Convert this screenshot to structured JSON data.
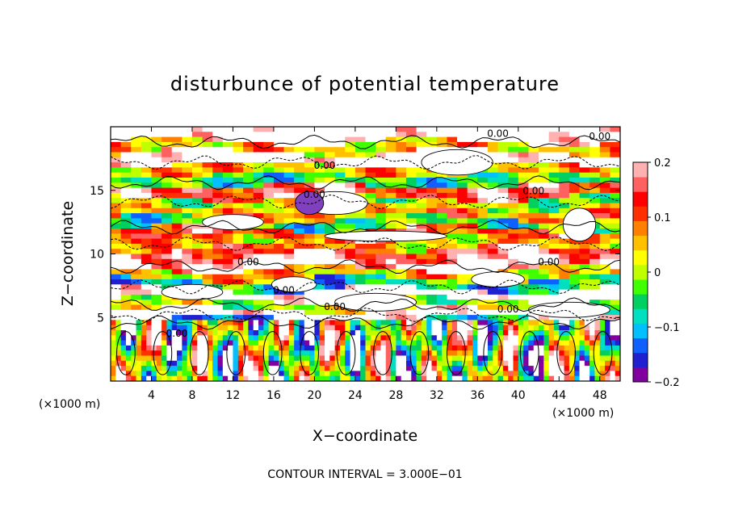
{
  "chart_data": {
    "type": "heatmap",
    "title": "disturbunce of potential temperature",
    "xlabel": "X−coordinate",
    "ylabel": "Z−coordinate",
    "x_unit_left": "(×1000 m)",
    "x_unit_right": "(×1000 m)",
    "xlim": [
      0,
      50
    ],
    "ylim": [
      0,
      20
    ],
    "x_ticks": [
      4,
      8,
      12,
      16,
      20,
      24,
      28,
      32,
      36,
      40,
      44,
      48
    ],
    "y_ticks": [
      5,
      10,
      15
    ],
    "colorbar": {
      "min": -0.2,
      "max": 0.2,
      "ticks": [
        "0.2",
        "0.1",
        "0",
        "−0.1",
        "−0.2"
      ],
      "colors": [
        "#8000a0",
        "#2020d0",
        "#1060ff",
        "#00c0ff",
        "#00e0c0",
        "#00d060",
        "#40ff00",
        "#c0ff00",
        "#ffff00",
        "#ffc000",
        "#ff8000",
        "#ff3000",
        "#ff0000",
        "#ff6060",
        "#ffb0b0"
      ],
      "saturation_color": "#ffffff"
    },
    "contour_labels": [
      {
        "x": 38,
        "z": 19.2,
        "text": "0.00"
      },
      {
        "x": 48,
        "z": 19.0,
        "text": "0.00"
      },
      {
        "x": 21,
        "z": 16.7,
        "text": "0.00"
      },
      {
        "x": 41.5,
        "z": 14.7,
        "text": "0.00"
      },
      {
        "x": 20,
        "z": 14.4,
        "text": "0.00"
      },
      {
        "x": 13.5,
        "z": 9.1,
        "text": "0.00"
      },
      {
        "x": 43,
        "z": 9.1,
        "text": "0.00"
      },
      {
        "x": 17,
        "z": 6.9,
        "text": "0.00"
      },
      {
        "x": 22,
        "z": 5.6,
        "text": "0.00"
      },
      {
        "x": 39,
        "z": 5.4,
        "text": "0.00"
      },
      {
        "x": 6.5,
        "z": 3.5,
        "text": "0.00"
      }
    ],
    "contour_interval_text": "CONTOUR INTERVAL = 3.000E−01"
  }
}
